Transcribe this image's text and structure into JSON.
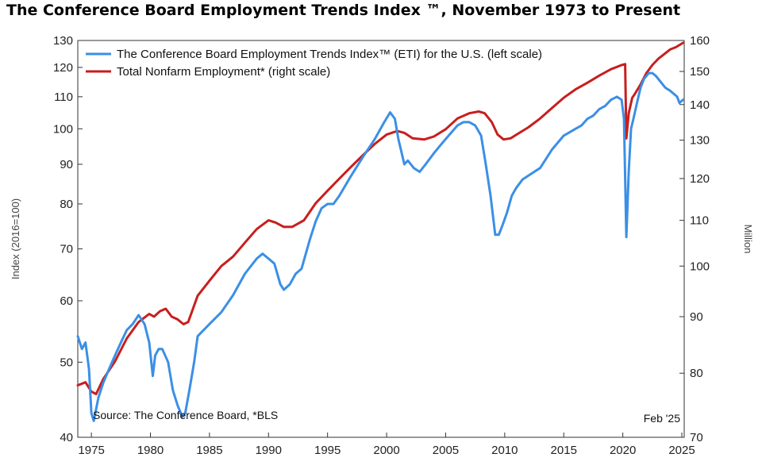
{
  "chart_data": {
    "type": "line",
    "title": "The Conference Board Employment Trends Index ™, November 1973 to Present",
    "ylabel_left": "Index (2016=100)",
    "ylabel_right": "Million",
    "source": "Source: The Conference Board, *BLS",
    "date_note": "Feb '25",
    "x_range": [
      1973.85,
      2025.2
    ],
    "x_ticks": [
      "1975",
      "1980",
      "1985",
      "1990",
      "1995",
      "2000",
      "2005",
      "2010",
      "2015",
      "2020",
      "2025"
    ],
    "y_left": {
      "scale": "log",
      "range": [
        40,
        130
      ],
      "ticks": [
        40,
        50,
        60,
        70,
        80,
        90,
        100,
        110,
        120,
        130
      ]
    },
    "y_right": {
      "scale": "log",
      "range": [
        70,
        160
      ],
      "ticks": [
        70,
        80,
        90,
        100,
        110,
        120,
        130,
        140,
        150,
        160
      ]
    },
    "legend_position": "top-left",
    "series": [
      {
        "name": "The Conference Board Employment Trends Index™ (ETI) for the U.S. (left scale)",
        "axis": "left",
        "color": "#3b8fe6",
        "x": [
          1973.85,
          1974.2,
          1974.5,
          1974.8,
          1975.0,
          1975.2,
          1975.6,
          1976.0,
          1976.5,
          1977.0,
          1977.5,
          1978.0,
          1978.5,
          1979.0,
          1979.5,
          1979.9,
          1980.2,
          1980.4,
          1980.7,
          1981.0,
          1981.5,
          1981.9,
          1982.3,
          1982.7,
          1982.95,
          1983.3,
          1983.7,
          1984.0,
          1984.5,
          1985.0,
          1986.0,
          1987.0,
          1988.0,
          1989.0,
          1989.5,
          1990.0,
          1990.5,
          1991.0,
          1991.3,
          1991.8,
          1992.3,
          1992.8,
          1993.5,
          1994.0,
          1994.5,
          1995.0,
          1995.5,
          1996.0,
          1997.0,
          1998.0,
          1999.0,
          1999.8,
          2000.3,
          2000.7,
          2001.0,
          2001.5,
          2001.8,
          2002.3,
          2002.8,
          2003.3,
          2004.0,
          2004.5,
          2005.0,
          2005.5,
          2006.0,
          2006.5,
          2007.0,
          2007.5,
          2008.0,
          2008.4,
          2008.8,
          2009.2,
          2009.5,
          2009.8,
          2010.2,
          2010.6,
          2011.0,
          2011.5,
          2012.0,
          2012.5,
          2013.0,
          2014.0,
          2015.0,
          2016.0,
          2016.5,
          2017.0,
          2017.5,
          2018.0,
          2018.5,
          2019.0,
          2019.5,
          2019.9,
          2020.1,
          2020.3,
          2020.5,
          2020.7,
          2020.9,
          2021.2,
          2021.5,
          2021.8,
          2022.2,
          2022.5,
          2022.8,
          2023.2,
          2023.6,
          2024.0,
          2024.3,
          2024.6,
          2024.8,
          2025.1
        ],
        "y": [
          54,
          52,
          53,
          49,
          43,
          42,
          45,
          47,
          49,
          51,
          53,
          55,
          56,
          57.5,
          56,
          53,
          48,
          51,
          52,
          52,
          50,
          46,
          44,
          42.5,
          43,
          46,
          50,
          54,
          55,
          56,
          58,
          61,
          65,
          68,
          69,
          68,
          67,
          63,
          62,
          63,
          65,
          66,
          72,
          76,
          79,
          80,
          80,
          82,
          87,
          92,
          97,
          102,
          105,
          103,
          97,
          90,
          91,
          89,
          88,
          90,
          93,
          95,
          97,
          99,
          101,
          102,
          102,
          101,
          98,
          90,
          82,
          73,
          73,
          75,
          78,
          82,
          84,
          86,
          87,
          88,
          89,
          94,
          98,
          100,
          101,
          103,
          104,
          106,
          107,
          109,
          110,
          109,
          103,
          72.5,
          88,
          100,
          103,
          108,
          113,
          116,
          118,
          118,
          117,
          115,
          113,
          112,
          111,
          110,
          108,
          109
        ]
      },
      {
        "name": "Total Nonfarm Employment* (right scale)",
        "axis": "right",
        "color": "#c81e1e",
        "x": [
          1973.85,
          1974.5,
          1975.0,
          1975.4,
          1976.0,
          1977.0,
          1978.0,
          1979.0,
          1979.9,
          1980.3,
          1980.8,
          1981.3,
          1981.8,
          1982.3,
          1982.8,
          1983.2,
          1984.0,
          1985.0,
          1986.0,
          1987.0,
          1988.0,
          1989.0,
          1990.0,
          1990.6,
          1991.3,
          1992.0,
          1993.0,
          1994.0,
          1995.0,
          1996.0,
          1997.0,
          1998.0,
          1999.0,
          2000.0,
          2000.9,
          2001.5,
          2002.2,
          2003.2,
          2004.0,
          2005.0,
          2006.0,
          2007.0,
          2007.8,
          2008.3,
          2008.9,
          2009.4,
          2009.9,
          2010.5,
          2011.0,
          2012.0,
          2013.0,
          2014.0,
          2015.0,
          2016.0,
          2017.0,
          2018.0,
          2019.0,
          2019.9,
          2020.2,
          2020.3,
          2020.5,
          2020.8,
          2021.0,
          2021.5,
          2022.0,
          2022.5,
          2023.0,
          2023.5,
          2024.0,
          2024.5,
          2025.1
        ],
        "y": [
          78,
          78.5,
          77,
          76.6,
          79,
          82,
          86,
          89,
          90.5,
          90,
          91,
          91.5,
          90,
          89.5,
          88.6,
          89,
          94,
          97,
          100,
          102,
          105,
          108,
          110,
          109.5,
          108.5,
          108.5,
          110,
          114,
          117,
          120,
          123,
          126,
          129,
          131.5,
          132.5,
          132,
          130.5,
          130.2,
          131,
          133,
          136,
          137.5,
          138,
          137.5,
          135,
          131.5,
          130.2,
          130.5,
          131.5,
          133.5,
          136,
          139,
          142,
          144.5,
          146.5,
          148.7,
          150.7,
          152,
          152.3,
          130.5,
          137.5,
          142,
          143,
          146,
          149.5,
          152,
          154,
          155.5,
          157,
          157.8,
          159.2
        ]
      }
    ]
  }
}
